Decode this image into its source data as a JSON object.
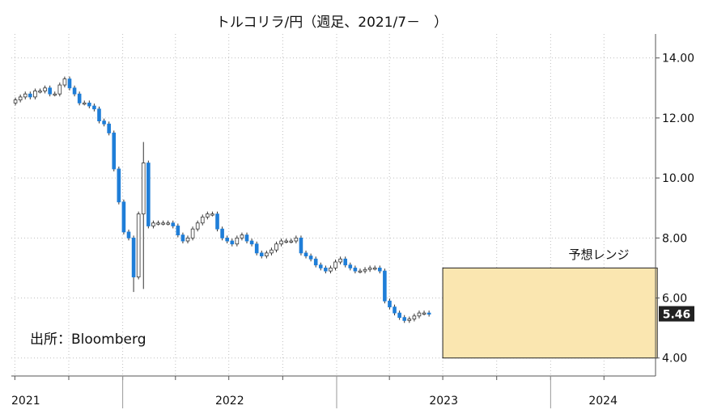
{
  "chart_data": {
    "type": "candlestick",
    "title": "トルコリラ/円（週足、2021/7－　）",
    "xlabel": "",
    "ylabel": "",
    "ylim": [
      3.4,
      14.8
    ],
    "yticks": [
      "14.00",
      "12.00",
      "10.00",
      "8.00",
      "6.00",
      "4.00"
    ],
    "ytick_values": [
      14,
      12,
      10,
      8,
      6,
      4
    ],
    "xticks": [
      "2021",
      "2022",
      "2023",
      "2024"
    ],
    "source": "出所：Bloomberg",
    "last_value": "5.46",
    "last_value_num": 5.46,
    "forecast": {
      "label": "予想レンジ",
      "low": 4.0,
      "high": 7.0,
      "start": "2023-07",
      "end": "2024-07"
    },
    "x_start": "2021-06-25",
    "x_end": "2024-06-28",
    "grid": true,
    "colors": {
      "up": "#ffffff",
      "down": "#1f7ed8",
      "outline": "#333333",
      "forecast_fill": "#fae6b0",
      "forecast_border": "#222222",
      "last_badge": "#222222"
    },
    "closes": [
      12.6,
      12.7,
      12.8,
      12.7,
      12.9,
      12.9,
      13.0,
      12.8,
      12.8,
      13.1,
      13.3,
      13.0,
      12.8,
      12.5,
      12.5,
      12.4,
      12.3,
      11.9,
      11.8,
      11.5,
      10.3,
      9.2,
      8.2,
      8.0,
      6.7,
      8.8,
      10.5,
      8.4,
      8.5,
      8.5,
      8.5,
      8.5,
      8.4,
      8.1,
      7.9,
      8.0,
      8.3,
      8.5,
      8.7,
      8.8,
      8.8,
      8.3,
      8.0,
      7.9,
      7.8,
      8.0,
      8.1,
      7.9,
      7.8,
      7.5,
      7.4,
      7.5,
      7.6,
      7.8,
      7.9,
      7.9,
      7.9,
      8.0,
      7.5,
      7.4,
      7.3,
      7.1,
      7.0,
      6.9,
      7.0,
      7.2,
      7.3,
      7.1,
      7.0,
      6.9,
      6.9,
      6.95,
      7.0,
      7.0,
      6.9,
      5.9,
      5.7,
      5.5,
      5.35,
      5.25,
      5.3,
      5.4,
      5.5,
      5.5,
      5.46
    ]
  }
}
